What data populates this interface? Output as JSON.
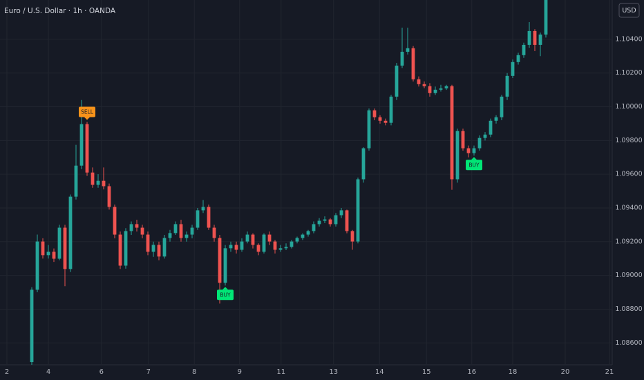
{
  "chart_data": {
    "type": "candlestick",
    "title": "Euro / U.S. Dollar · 1h · OANDA",
    "currency": "USD",
    "up_color": "#26a69a",
    "down_color": "#ef5350",
    "grid": true,
    "xlim": [
      -5.75,
      105
    ],
    "xticks": [
      {
        "value": -4.5,
        "label": "2"
      },
      {
        "value": 3,
        "label": "4"
      },
      {
        "value": 12.6,
        "label": "6"
      },
      {
        "value": 21.1,
        "label": "7"
      },
      {
        "value": 29.4,
        "label": "8"
      },
      {
        "value": 37.6,
        "label": "9"
      },
      {
        "value": 45.1,
        "label": "11"
      },
      {
        "value": 54.6,
        "label": "13"
      },
      {
        "value": 62.9,
        "label": "14"
      },
      {
        "value": 71.4,
        "label": "15"
      },
      {
        "value": 79.6,
        "label": "16"
      },
      {
        "value": 87,
        "label": "18"
      },
      {
        "value": 96.5,
        "label": "20"
      },
      {
        "value": 104.5,
        "label": "21"
      }
    ],
    "ylim": [
      1.0847,
      1.10633
    ],
    "yticks": [
      {
        "value": 1.086,
        "label": "1.08600"
      },
      {
        "value": 1.088,
        "label": "1.08800"
      },
      {
        "value": 1.09,
        "label": "1.09000"
      },
      {
        "value": 1.092,
        "label": "1.09200"
      },
      {
        "value": 1.094,
        "label": "1.09400"
      },
      {
        "value": 1.096,
        "label": "1.09600"
      },
      {
        "value": 1.098,
        "label": "1.09800"
      },
      {
        "value": 1.1,
        "label": "1.10000"
      },
      {
        "value": 1.102,
        "label": "1.10200"
      },
      {
        "value": 1.104,
        "label": "1.10400"
      }
    ],
    "annotations": [
      {
        "text": "SELL",
        "index": 10,
        "color": "#f7931a"
      },
      {
        "text": "BUY",
        "index": 35,
        "color": "#00e676"
      },
      {
        "text": "BUY",
        "index": 80,
        "color": "#00e676"
      }
    ],
    "ohlc": [
      [
        1.08486,
        1.0893,
        1.0847,
        1.08915
      ],
      [
        1.08915,
        1.09242,
        1.089,
        1.09201
      ],
      [
        1.09201,
        1.0922,
        1.091,
        1.0912
      ],
      [
        1.0912,
        1.0918,
        1.091,
        1.0914
      ],
      [
        1.0914,
        1.0916,
        1.0908,
        1.09099
      ],
      [
        1.09099,
        1.093,
        1.0909,
        1.09283
      ],
      [
        1.09283,
        1.093,
        1.08936,
        1.09038
      ],
      [
        1.09038,
        1.0948,
        1.0902,
        1.09467
      ],
      [
        1.09467,
        1.09774,
        1.0945,
        1.09651
      ],
      [
        1.09651,
        1.1004,
        1.0963,
        1.09897
      ],
      [
        1.09897,
        1.0991,
        1.0959,
        1.0961
      ],
      [
        1.0961,
        1.0964,
        1.0952,
        1.09537
      ],
      [
        1.09537,
        1.096,
        1.0952,
        1.09561
      ],
      [
        1.09561,
        1.0964,
        1.0951,
        1.09529
      ],
      [
        1.09529,
        1.09545,
        1.0939,
        1.09406
      ],
      [
        1.09406,
        1.0942,
        1.0922,
        1.09242
      ],
      [
        1.09242,
        1.0926,
        1.09038,
        1.09058
      ],
      [
        1.09058,
        1.0928,
        1.0904,
        1.09263
      ],
      [
        1.09263,
        1.0932,
        1.0924,
        1.09304
      ],
      [
        1.09304,
        1.0933,
        1.0926,
        1.09283
      ],
      [
        1.09283,
        1.093,
        1.0922,
        1.09242
      ],
      [
        1.09242,
        1.0926,
        1.0912,
        1.0914
      ],
      [
        1.0914,
        1.092,
        1.0911,
        1.09181
      ],
      [
        1.09181,
        1.092,
        1.0909,
        1.09112
      ],
      [
        1.09112,
        1.0924,
        1.091,
        1.09222
      ],
      [
        1.09222,
        1.0927,
        1.092,
        1.09251
      ],
      [
        1.09251,
        1.0932,
        1.0924,
        1.09304
      ],
      [
        1.09304,
        1.0933,
        1.092,
        1.09222
      ],
      [
        1.09222,
        1.0926,
        1.092,
        1.09242
      ],
      [
        1.09242,
        1.093,
        1.0922,
        1.09283
      ],
      [
        1.09283,
        1.094,
        1.0927,
        1.09386
      ],
      [
        1.09386,
        1.09447,
        1.0937,
        1.09406
      ],
      [
        1.09406,
        1.0942,
        1.0927,
        1.09283
      ],
      [
        1.09283,
        1.093,
        1.092,
        1.09222
      ],
      [
        1.09222,
        1.0924,
        1.08833,
        1.08956
      ],
      [
        1.08956,
        1.0918,
        1.0894,
        1.09161
      ],
      [
        1.09161,
        1.092,
        1.0914,
        1.09181
      ],
      [
        1.09181,
        1.092,
        1.0913,
        1.09152
      ],
      [
        1.09152,
        1.0922,
        1.0914,
        1.09201
      ],
      [
        1.09201,
        1.0926,
        1.0919,
        1.09242
      ],
      [
        1.09242,
        1.0925,
        1.0916,
        1.09181
      ],
      [
        1.09181,
        1.0919,
        1.0912,
        1.0914
      ],
      [
        1.0914,
        1.0925,
        1.0913,
        1.09242
      ],
      [
        1.09242,
        1.0926,
        1.0918,
        1.09201
      ],
      [
        1.09201,
        1.0921,
        1.0913,
        1.09152
      ],
      [
        1.09152,
        1.0918,
        1.0914,
        1.09161
      ],
      [
        1.09161,
        1.0919,
        1.0915,
        1.09169
      ],
      [
        1.09169,
        1.0921,
        1.0916,
        1.09201
      ],
      [
        1.09201,
        1.0923,
        1.0919,
        1.09222
      ],
      [
        1.09222,
        1.0925,
        1.0921,
        1.09242
      ],
      [
        1.09242,
        1.0927,
        1.0923,
        1.09263
      ],
      [
        1.09263,
        1.0932,
        1.0925,
        1.09304
      ],
      [
        1.09304,
        1.0934,
        1.0929,
        1.09324
      ],
      [
        1.09324,
        1.0935,
        1.0931,
        1.09332
      ],
      [
        1.09332,
        1.0934,
        1.0929,
        1.09304
      ],
      [
        1.09304,
        1.0937,
        1.0929,
        1.09357
      ],
      [
        1.09357,
        1.094,
        1.0934,
        1.09386
      ],
      [
        1.09386,
        1.0939,
        1.0925,
        1.09263
      ],
      [
        1.09263,
        1.0927,
        1.09152,
        1.09201
      ],
      [
        1.09201,
        1.0958,
        1.0919,
        1.0957
      ],
      [
        1.0957,
        1.0976,
        1.0955,
        1.09754
      ],
      [
        1.09754,
        1.0999,
        1.0974,
        1.09979
      ],
      [
        1.09979,
        1.0999,
        1.0992,
        1.09938
      ],
      [
        1.09938,
        1.0995,
        1.099,
        1.09917
      ],
      [
        1.09917,
        1.0993,
        1.0989,
        1.09905
      ],
      [
        1.09905,
        1.1007,
        1.0989,
        1.1006
      ],
      [
        1.1006,
        1.1026,
        1.1004,
        1.10244
      ],
      [
        1.10244,
        1.10469,
        1.1023,
        1.10326
      ],
      [
        1.10326,
        1.10469,
        1.1031,
        1.10347
      ],
      [
        1.10347,
        1.1036,
        1.1015,
        1.10163
      ],
      [
        1.10163,
        1.1018,
        1.1012,
        1.10134
      ],
      [
        1.10134,
        1.1015,
        1.1011,
        1.10122
      ],
      [
        1.10122,
        1.1014,
        1.1006,
        1.10081
      ],
      [
        1.10081,
        1.1012,
        1.1007,
        1.10101
      ],
      [
        1.10101,
        1.1013,
        1.1009,
        1.10109
      ],
      [
        1.10109,
        1.1013,
        1.101,
        1.10122
      ],
      [
        1.10122,
        1.1013,
        1.09508,
        1.0957
      ],
      [
        1.0957,
        1.0987,
        1.0955,
        1.09856
      ],
      [
        1.09856,
        1.0987,
        1.0974,
        1.09754
      ],
      [
        1.09754,
        1.0977,
        1.097,
        1.09725
      ],
      [
        1.09725,
        1.0977,
        1.0971,
        1.09754
      ],
      [
        1.09754,
        1.0983,
        1.0974,
        1.09815
      ],
      [
        1.09815,
        1.0985,
        1.098,
        1.09835
      ],
      [
        1.09835,
        1.0993,
        1.0982,
        1.09917
      ],
      [
        1.09917,
        1.0995,
        1.099,
        1.09938
      ],
      [
        1.09938,
        1.1007,
        1.0992,
        1.1006
      ],
      [
        1.1006,
        1.102,
        1.1004,
        1.10183
      ],
      [
        1.10183,
        1.1028,
        1.1017,
        1.10265
      ],
      [
        1.10265,
        1.1032,
        1.1025,
        1.10306
      ],
      [
        1.10306,
        1.1038,
        1.1029,
        1.10367
      ],
      [
        1.10367,
        1.10502,
        1.1035,
        1.10449
      ],
      [
        1.10449,
        1.1046,
        1.1033,
        1.10367
      ],
      [
        1.10367,
        1.1044,
        1.103,
        1.10428
      ],
      [
        1.10428,
        1.10633,
        1.1041,
        1.10633
      ]
    ]
  }
}
